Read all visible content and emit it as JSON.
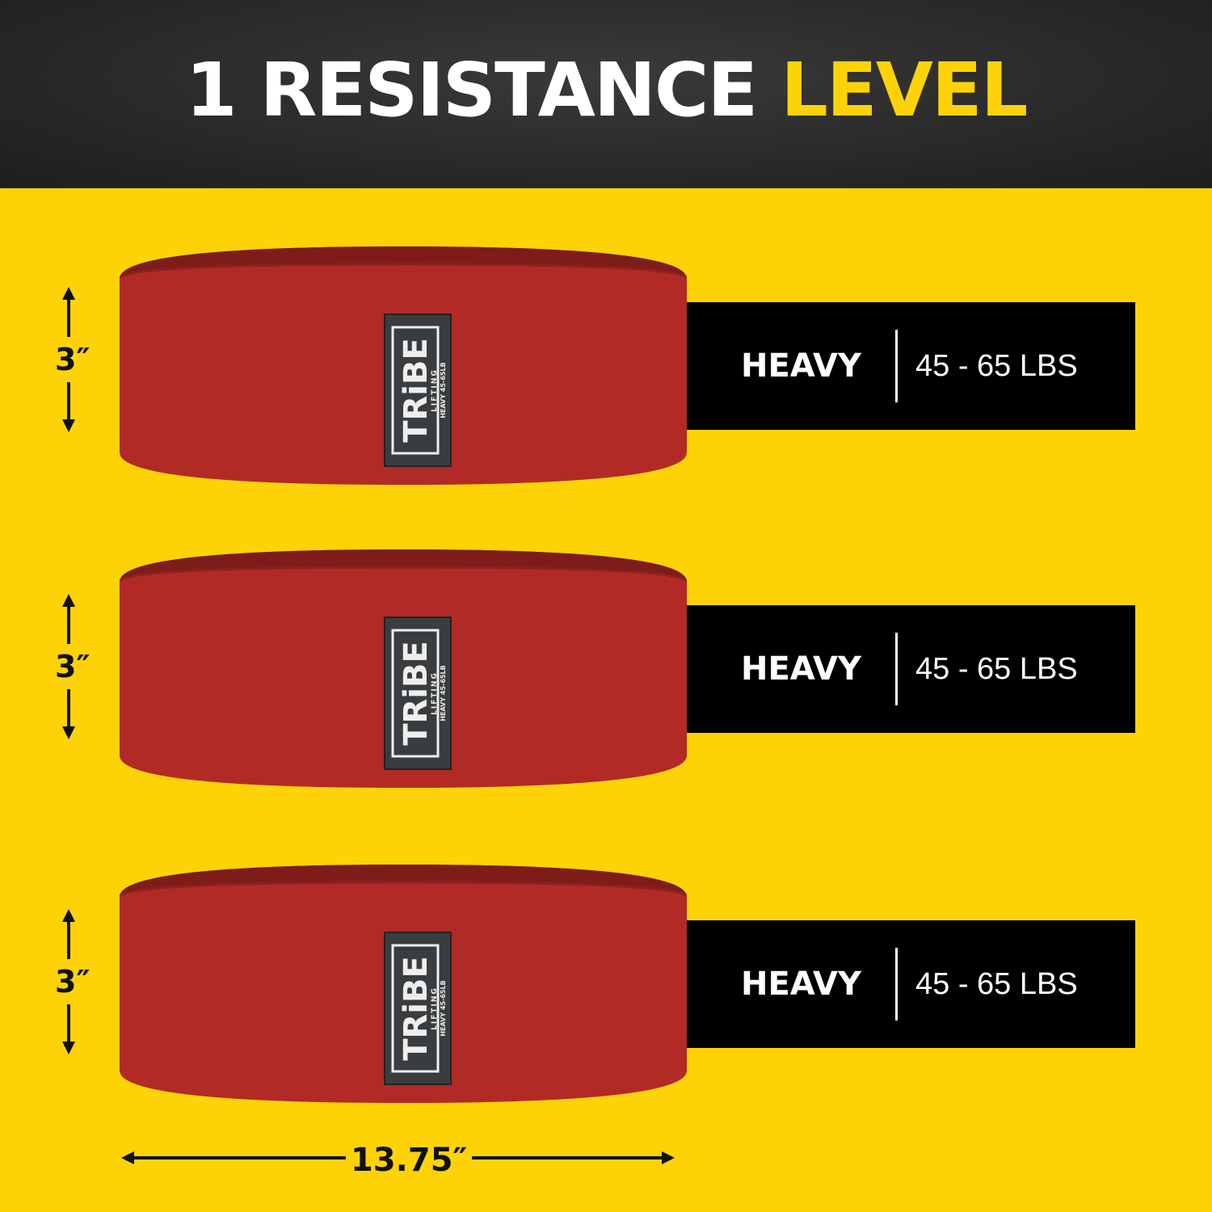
{
  "header": {
    "title_main": "1 RESISTANCE",
    "title_highlight": "LEVEL"
  },
  "colors": {
    "yellow": "#fdd308",
    "band_red": "#b22a26",
    "dark": "#262626"
  },
  "band_label": {
    "brand": "TRiBE",
    "sub": "LIFTING",
    "level": "HEAVY 45-65LB"
  },
  "bands": [
    {
      "level": "HEAVY",
      "range": "45 - 65 LBS",
      "height": "3″"
    },
    {
      "level": "HEAVY",
      "range": "45 - 65 LBS",
      "height": "3″"
    },
    {
      "level": "HEAVY",
      "range": "45 - 65 LBS",
      "height": "3″"
    }
  ],
  "width_dimension": "13.75″"
}
